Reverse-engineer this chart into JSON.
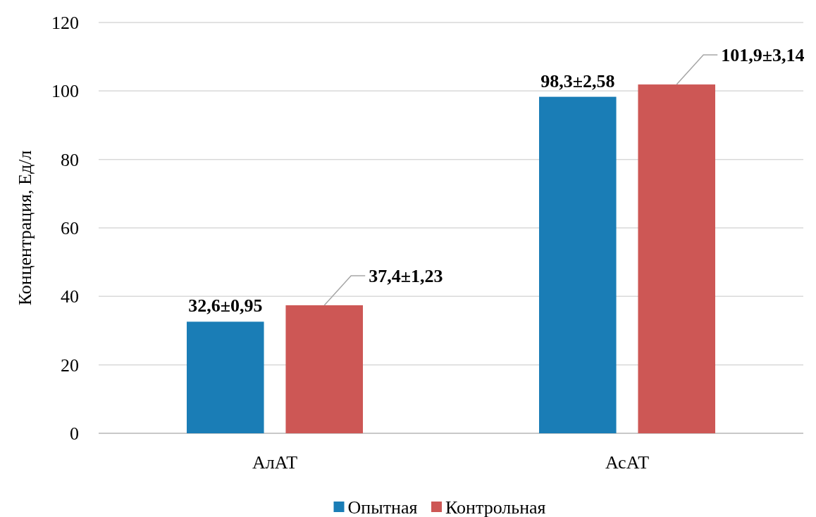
{
  "chart_data": {
    "type": "bar",
    "ylabel": "Концентрация, Ед/л",
    "categories": [
      "АлАТ",
      "АсАТ"
    ],
    "series": [
      {
        "name": "Опытная",
        "color": "#1a7db6",
        "values": [
          32.6,
          98.3
        ],
        "value_labels": [
          "32,6±0,95",
          "98,3±2,58"
        ]
      },
      {
        "name": "Контрольная",
        "color": "#cd5755",
        "values": [
          37.4,
          101.9
        ],
        "value_labels": [
          "37,4±1,23",
          "101,9±3,14"
        ]
      }
    ],
    "ylim": [
      0,
      120
    ],
    "yticks": [
      0,
      20,
      40,
      60,
      80,
      100,
      120
    ],
    "grid": "y",
    "legend": "bottom"
  }
}
